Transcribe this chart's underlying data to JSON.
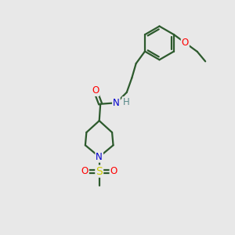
{
  "bg_color": "#e8e8e8",
  "bond_color": "#2d5a2d",
  "bond_width": 1.6,
  "atom_colors": {
    "N": "#0000cc",
    "O": "#ff0000",
    "S": "#cccc00",
    "H": "#5a8a8a",
    "C": "#2d5a2d"
  },
  "font_size": 8.5
}
